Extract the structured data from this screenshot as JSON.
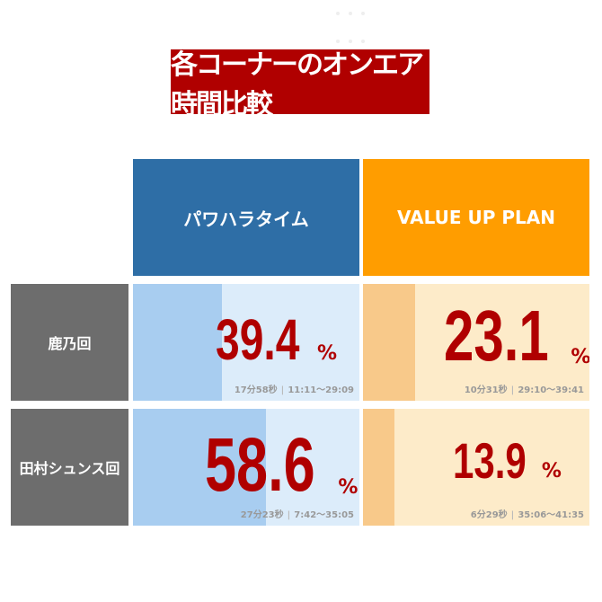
{
  "title": "各コーナーのオンエア時間比較",
  "columns": [
    "パワハラタイム",
    "VALUE UP PLAN"
  ],
  "rows": [
    {
      "label": "鹿乃回",
      "cells": [
        {
          "value": 39.4,
          "unit": "%",
          "duration": "17分58秒",
          "range": "11:11～29:09"
        },
        {
          "value": 23.1,
          "unit": "%",
          "duration": "10分31秒",
          "range": "29:10～39:41"
        }
      ]
    },
    {
      "label": "田村シュンス回",
      "cells": [
        {
          "value": 58.6,
          "unit": "%",
          "duration": "27分23秒",
          "range": "7:42～35:05"
        },
        {
          "value": 13.9,
          "unit": "%",
          "duration": "6分29秒",
          "range": "35:06～41:35"
        }
      ]
    }
  ]
}
